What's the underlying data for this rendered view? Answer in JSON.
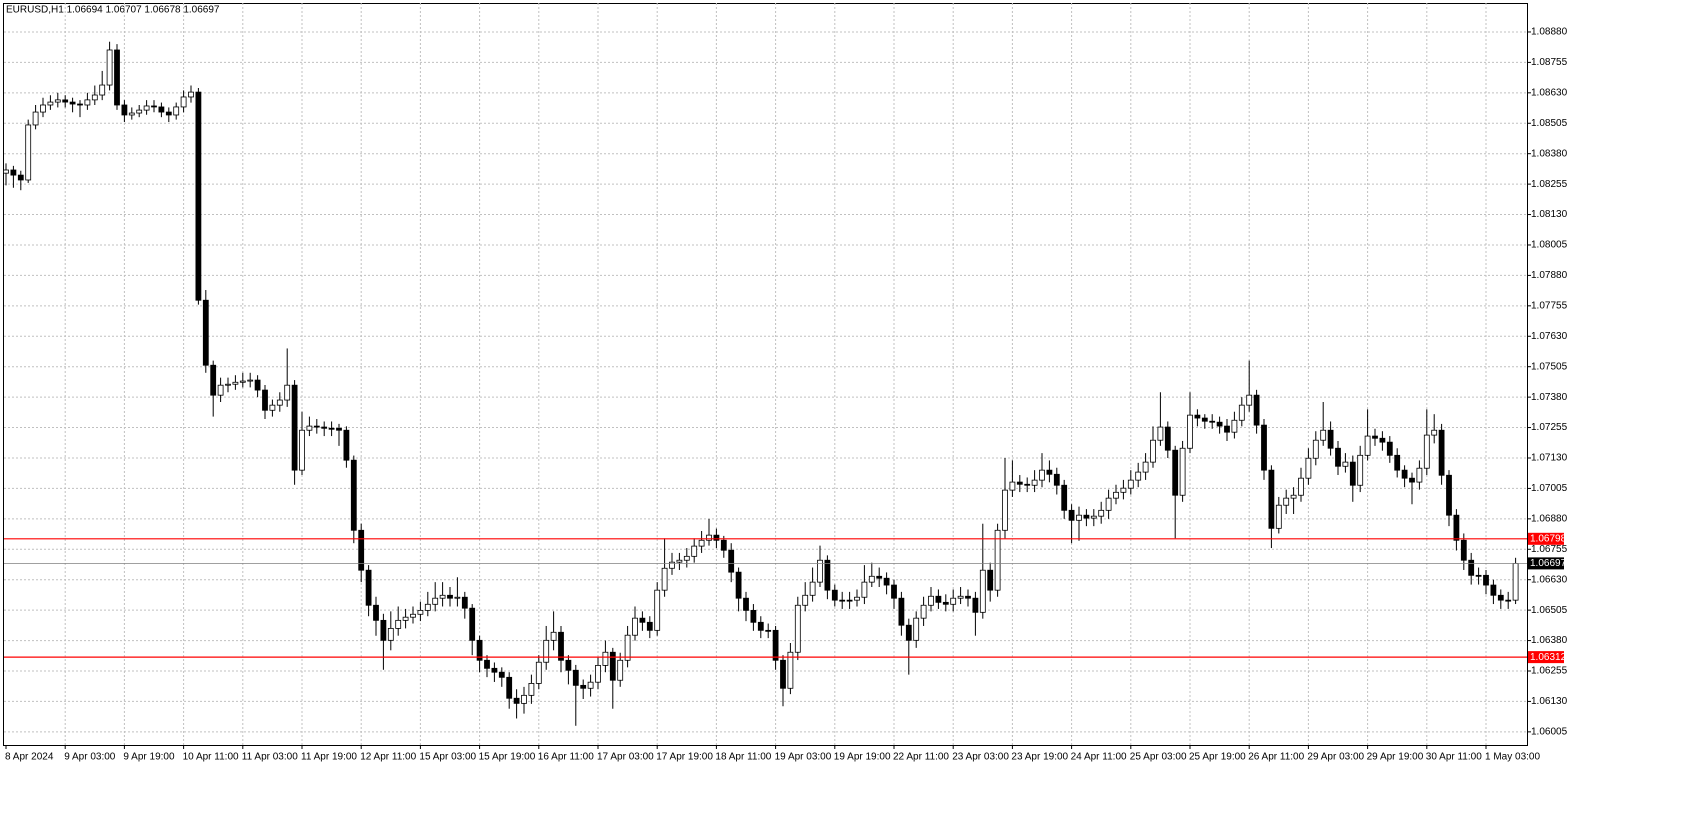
{
  "chart_data": {
    "type": "candlestick",
    "title": "EURUSD,H1  1.06694 1.06707 1.06678 1.06697",
    "categories": [
      "8 Apr 2024",
      null,
      null,
      null,
      null,
      null,
      null,
      null,
      "9 Apr 03:00",
      null,
      null,
      null,
      null,
      null,
      null,
      null,
      "9 Apr 19:00",
      null,
      null,
      null,
      null,
      null,
      null,
      null,
      "10 Apr 11:00",
      null,
      null,
      null,
      null,
      null,
      null,
      null,
      "11 Apr 03:00",
      null,
      null,
      null,
      null,
      null,
      null,
      null,
      "11 Apr 19:00",
      null,
      null,
      null,
      null,
      null,
      null,
      null,
      "12 Apr 11:00",
      null,
      null,
      null,
      null,
      null,
      null,
      null,
      "15 Apr 03:00",
      null,
      null,
      null,
      null,
      null,
      null,
      null,
      "15 Apr 19:00",
      null,
      null,
      null,
      null,
      null,
      null,
      null,
      "16 Apr 11:00",
      null,
      null,
      null,
      null,
      null,
      null,
      null,
      "17 Apr 03:00",
      null,
      null,
      null,
      null,
      null,
      null,
      null,
      "17 Apr 19:00",
      null,
      null,
      null,
      null,
      null,
      null,
      null,
      "18 Apr 11:00",
      null,
      null,
      null,
      null,
      null,
      null,
      null,
      "19 Apr 03:00",
      null,
      null,
      null,
      null,
      null,
      null,
      null,
      "19 Apr 19:00",
      null,
      null,
      null,
      null,
      null,
      null,
      null,
      "22 Apr 11:00",
      null,
      null,
      null,
      null,
      null,
      null,
      null,
      "23 Apr 03:00",
      null,
      null,
      null,
      null,
      null,
      null,
      null,
      "23 Apr 19:00",
      null,
      null,
      null,
      null,
      null,
      null,
      null,
      "24 Apr 11:00",
      null,
      null,
      null,
      null,
      null,
      null,
      null,
      "25 Apr 03:00",
      null,
      null,
      null,
      null,
      null,
      null,
      null,
      "25 Apr 19:00",
      null,
      null,
      null,
      null,
      null,
      null,
      null,
      "26 Apr 11:00",
      null,
      null,
      null,
      null,
      null,
      null,
      null,
      "29 Apr 03:00",
      null,
      null,
      null,
      null,
      null,
      null,
      null,
      "29 Apr 19:00",
      null,
      null,
      null,
      null,
      null,
      null,
      null,
      "30 Apr 11:00",
      null,
      null,
      null,
      null,
      null,
      null,
      null,
      "1 May 03:00",
      null,
      null,
      null,
      null
    ],
    "open": [
      1.083,
      1.08313,
      1.08292,
      1.08272,
      1.08498,
      1.08551,
      1.0858,
      1.08592,
      1.08601,
      1.08592,
      1.08584,
      1.0858,
      1.08601,
      1.08621,
      1.08662,
      1.08806,
      1.0858,
      1.08539,
      1.08547,
      1.08559,
      1.08576,
      1.08572,
      1.08551,
      1.08539,
      1.08572,
      1.08613,
      1.08633,
      1.07778,
      1.07511,
      1.07388,
      1.07429,
      1.07433,
      1.07441,
      1.07446,
      1.0745,
      1.07409,
      1.07326,
      1.07347,
      1.07368,
      1.07429,
      1.0708,
      1.07244,
      1.07261,
      1.07257,
      1.07252,
      1.07252,
      1.07244,
      1.07121,
      1.06833,
      1.06669,
      1.06525,
      1.06463,
      1.06381,
      1.0643,
      1.06463,
      1.06476,
      1.06488,
      1.06504,
      1.06529,
      1.06554,
      1.06566,
      1.06554,
      1.06558,
      1.06513,
      1.06381,
      1.06299,
      1.06266,
      1.0625,
      1.06229,
      1.06143,
      1.06122,
      1.06155,
      1.06204,
      1.06291,
      1.06381,
      1.06414,
      1.06299,
      1.06258,
      1.06196,
      1.06184,
      1.06209,
      1.06278,
      1.06332,
      1.06217,
      1.06299,
      1.06402,
      1.06472,
      1.06455,
      1.06422,
      1.06587,
      1.06677,
      1.06702,
      1.0671,
      1.06726,
      1.06768,
      1.06792,
      1.06813,
      1.06792,
      1.06751,
      1.06661,
      1.06554,
      1.06504,
      1.06455,
      1.06422,
      1.06422,
      1.06299,
      1.06184,
      1.06332,
      1.06525,
      1.06566,
      1.0662,
      1.0671,
      1.06587,
      1.06546,
      1.06546,
      1.06546,
      1.06558,
      1.0662,
      1.06644,
      1.06636,
      1.06608,
      1.06554,
      1.06443,
      1.06381,
      1.06472,
      1.06525,
      1.06562,
      1.06537,
      1.06529,
      1.06554,
      1.06562,
      1.06554,
      1.06496,
      1.06669,
      1.06587,
      1.06833,
      1.06998,
      1.07031,
      1.07022,
      1.07018,
      1.07039,
      1.0708,
      1.07063,
      1.07018,
      1.06915,
      1.06874,
      1.06895,
      1.06883,
      1.06891,
      1.06915,
      1.06965,
      1.06989,
      1.07006,
      1.07039,
      1.07072,
      1.07113,
      1.07203,
      1.07257,
      1.07162,
      1.06977,
      1.0717,
      1.07306,
      1.07294,
      1.07281,
      1.07277,
      1.07261,
      1.07236,
      1.07285,
      1.07347,
      1.07388,
      1.07265,
      1.0708,
      1.06841,
      1.06936,
      1.06965,
      1.06977,
      1.07047,
      1.07129,
      1.07203,
      1.07244,
      1.0717,
      1.07096,
      1.07113,
      1.07018,
      1.07141,
      1.0722,
      1.07211,
      1.07195,
      1.07141,
      1.0708,
      1.07047,
      1.07031,
      1.07088,
      1.07224,
      1.07244,
      1.07059,
      1.06895,
      1.06792,
      1.0671,
      1.06648,
      1.06648,
      1.06608,
      1.06566,
      1.06546,
      1.06546
    ],
    "high": [
      1.0834,
      1.0833,
      1.0831,
      1.0852,
      1.0858,
      1.0861,
      1.0862,
      1.0863,
      1.0862,
      1.0861,
      1.086,
      1.0863,
      1.0866,
      1.0872,
      1.0884,
      1.0883,
      1.086,
      1.0857,
      1.0858,
      1.086,
      1.086,
      1.0859,
      1.0857,
      1.0859,
      1.0864,
      1.0866,
      1.0865,
      1.0782,
      1.0753,
      1.0746,
      1.0746,
      1.0747,
      1.0748,
      1.0748,
      1.0747,
      1.0743,
      1.0737,
      1.074,
      1.0758,
      1.0745,
      1.0732,
      1.073,
      1.0729,
      1.0728,
      1.0728,
      1.0727,
      1.0726,
      1.0714,
      1.0686,
      1.0669,
      1.0656,
      1.0649,
      1.065,
      1.0652,
      1.0651,
      1.0652,
      1.0654,
      1.0658,
      1.0662,
      1.0662,
      1.066,
      1.0664,
      1.0658,
      1.0653,
      1.064,
      1.0632,
      1.0629,
      1.0627,
      1.0625,
      1.0618,
      1.0619,
      1.0624,
      1.0632,
      1.0644,
      1.065,
      1.0644,
      1.0632,
      1.0628,
      1.0622,
      1.0624,
      1.0631,
      1.0638,
      1.0635,
      1.0633,
      1.0644,
      1.0652,
      1.065,
      1.0648,
      1.0662,
      1.068,
      1.0674,
      1.0674,
      1.0676,
      1.068,
      1.0683,
      1.0688,
      1.0684,
      1.0681,
      1.0678,
      1.0668,
      1.0658,
      1.0653,
      1.0648,
      1.0645,
      1.0644,
      1.0632,
      1.0637,
      1.0656,
      1.0662,
      1.0668,
      1.0677,
      1.0673,
      1.0661,
      1.0658,
      1.0658,
      1.0659,
      1.0669,
      1.067,
      1.0668,
      1.0666,
      1.0663,
      1.0658,
      1.0647,
      1.065,
      1.0656,
      1.066,
      1.0659,
      1.0657,
      1.0659,
      1.066,
      1.0659,
      1.0658,
      1.0686,
      1.067,
      1.0686,
      1.0713,
      1.0712,
      1.0706,
      1.0705,
      1.0708,
      1.0715,
      1.0712,
      1.0709,
      1.0704,
      1.0694,
      1.0693,
      1.0692,
      1.0692,
      1.0695,
      1.07,
      1.0702,
      1.0704,
      1.0708,
      1.0711,
      1.0715,
      1.0726,
      1.074,
      1.0728,
      1.0718,
      1.072,
      1.074,
      1.0733,
      1.0731,
      1.0731,
      1.073,
      1.0729,
      1.0732,
      1.0738,
      1.0753,
      1.0741,
      1.0729,
      1.071,
      1.0697,
      1.07,
      1.0701,
      1.0709,
      1.0717,
      1.0724,
      1.0736,
      1.0728,
      1.072,
      1.0715,
      1.0714,
      1.0718,
      1.0733,
      1.0725,
      1.0724,
      1.0722,
      1.0717,
      1.071,
      1.0707,
      1.0712,
      1.0733,
      1.0731,
      1.0727,
      1.0708,
      1.0692,
      1.0682,
      1.0674,
      1.0668,
      1.0667,
      1.0663,
      1.0659,
      1.0658,
      1.0672
    ],
    "low": [
      1.0825,
      1.0824,
      1.0823,
      1.0826,
      1.0848,
      1.0853,
      1.0856,
      1.0857,
      1.0857,
      1.0855,
      1.0853,
      1.0856,
      1.0858,
      1.086,
      1.0864,
      1.0856,
      1.0851,
      1.0852,
      1.0853,
      1.0854,
      1.0855,
      1.0853,
      1.0851,
      1.0852,
      1.0855,
      1.0859,
      1.0776,
      1.0748,
      1.073,
      1.0736,
      1.074,
      1.0741,
      1.0742,
      1.0742,
      1.0738,
      1.0729,
      1.073,
      1.0732,
      1.0734,
      1.0702,
      1.0706,
      1.0722,
      1.0723,
      1.0722,
      1.0722,
      1.0718,
      1.0709,
      1.0678,
      1.0662,
      1.0648,
      1.064,
      1.0626,
      1.0634,
      1.064,
      1.0643,
      1.0645,
      1.0646,
      1.0648,
      1.065,
      1.0652,
      1.0652,
      1.0652,
      1.0647,
      1.0632,
      1.0625,
      1.0623,
      1.0621,
      1.0619,
      1.061,
      1.0606,
      1.0608,
      1.0612,
      1.0618,
      1.0626,
      1.0634,
      1.0625,
      1.062,
      1.0603,
      1.0614,
      1.0615,
      1.0618,
      1.0625,
      1.061,
      1.0619,
      1.0627,
      1.0638,
      1.0642,
      1.0639,
      1.064,
      1.0656,
      1.0665,
      1.0667,
      1.0668,
      1.067,
      1.0674,
      1.0677,
      1.0676,
      1.0672,
      1.0662,
      1.065,
      1.0646,
      1.0642,
      1.0639,
      1.0639,
      1.0626,
      1.0611,
      1.0616,
      1.063,
      1.065,
      1.0654,
      1.066,
      1.0655,
      1.0652,
      1.0651,
      1.0651,
      1.0652,
      1.0653,
      1.066,
      1.066,
      1.0657,
      1.0651,
      1.064,
      1.0624,
      1.0635,
      1.0644,
      1.065,
      1.0651,
      1.065,
      1.065,
      1.0653,
      1.0652,
      1.064,
      1.0647,
      1.0654,
      1.0656,
      1.068,
      1.0697,
      1.0699,
      1.0699,
      1.0699,
      1.0701,
      1.0703,
      1.0698,
      1.0688,
      1.0678,
      1.0679,
      1.0685,
      1.0685,
      1.0686,
      1.0688,
      1.0694,
      1.0696,
      1.0698,
      1.0701,
      1.0704,
      1.0709,
      1.0718,
      1.0713,
      1.068,
      1.0695,
      1.0715,
      1.0726,
      1.0725,
      1.0725,
      1.0723,
      1.072,
      1.0721,
      1.0726,
      1.0732,
      1.0723,
      1.0704,
      1.0676,
      1.0682,
      1.069,
      1.069,
      1.0695,
      1.0702,
      1.071,
      1.0718,
      1.0714,
      1.0706,
      1.0707,
      1.0695,
      1.0699,
      1.0712,
      1.0718,
      1.0716,
      1.0711,
      1.0705,
      1.0701,
      1.0694,
      1.07,
      1.0706,
      1.0719,
      1.0702,
      1.0685,
      1.0675,
      1.0667,
      1.0661,
      1.0661,
      1.0657,
      1.0653,
      1.0651,
      1.0651,
      1.0653
    ],
    "close": [
      1.08313,
      1.08292,
      1.08272,
      1.08498,
      1.08551,
      1.0858,
      1.08592,
      1.08601,
      1.08592,
      1.08584,
      1.0858,
      1.08601,
      1.08621,
      1.08662,
      1.08806,
      1.0858,
      1.08539,
      1.08547,
      1.08559,
      1.08576,
      1.08572,
      1.08551,
      1.08539,
      1.08572,
      1.08613,
      1.08633,
      1.07778,
      1.07511,
      1.07388,
      1.07429,
      1.07433,
      1.07441,
      1.07446,
      1.0745,
      1.07409,
      1.07326,
      1.07347,
      1.07368,
      1.07429,
      1.0708,
      1.07244,
      1.07261,
      1.07257,
      1.07252,
      1.07252,
      1.07244,
      1.07121,
      1.06833,
      1.06669,
      1.06525,
      1.06463,
      1.06381,
      1.0643,
      1.06463,
      1.06476,
      1.06488,
      1.06504,
      1.06529,
      1.06554,
      1.06566,
      1.06554,
      1.06558,
      1.06513,
      1.06381,
      1.06299,
      1.06266,
      1.0625,
      1.06229,
      1.06143,
      1.06122,
      1.06155,
      1.06204,
      1.06291,
      1.06381,
      1.06414,
      1.06299,
      1.06258,
      1.06196,
      1.06184,
      1.06209,
      1.06278,
      1.06332,
      1.06217,
      1.06299,
      1.06402,
      1.06472,
      1.06455,
      1.06422,
      1.06587,
      1.06677,
      1.06702,
      1.0671,
      1.06726,
      1.06768,
      1.06792,
      1.06813,
      1.06792,
      1.06751,
      1.06661,
      1.06554,
      1.06504,
      1.06455,
      1.06422,
      1.06422,
      1.06299,
      1.06184,
      1.06332,
      1.06525,
      1.06566,
      1.0662,
      1.0671,
      1.06587,
      1.06546,
      1.06546,
      1.06546,
      1.06558,
      1.0662,
      1.06644,
      1.06636,
      1.06608,
      1.06554,
      1.06443,
      1.06381,
      1.06472,
      1.06525,
      1.06562,
      1.06537,
      1.06529,
      1.06554,
      1.06562,
      1.06554,
      1.06496,
      1.06669,
      1.06587,
      1.06833,
      1.06998,
      1.07031,
      1.07022,
      1.07018,
      1.07039,
      1.0708,
      1.07063,
      1.07018,
      1.06915,
      1.06874,
      1.06895,
      1.06883,
      1.06891,
      1.06915,
      1.06965,
      1.06989,
      1.07006,
      1.07039,
      1.07072,
      1.07113,
      1.07203,
      1.07257,
      1.07162,
      1.06977,
      1.0717,
      1.07306,
      1.07294,
      1.07281,
      1.07277,
      1.07261,
      1.07236,
      1.07285,
      1.07347,
      1.07388,
      1.07265,
      1.0708,
      1.06841,
      1.06936,
      1.06965,
      1.06977,
      1.07047,
      1.07129,
      1.07203,
      1.07244,
      1.0717,
      1.07096,
      1.07113,
      1.07018,
      1.07141,
      1.0722,
      1.07211,
      1.07195,
      1.07141,
      1.0708,
      1.07047,
      1.07031,
      1.07088,
      1.07224,
      1.07244,
      1.07059,
      1.06895,
      1.06792,
      1.0671,
      1.06648,
      1.06648,
      1.06608,
      1.06566,
      1.06546,
      1.06546,
      1.06697
    ],
    "ylim": [
      1.05951,
      1.08999
    ],
    "yticks": [
      {
        "value": 1.0888,
        "label": "1.08880"
      },
      {
        "value": 1.08755,
        "label": "1.08755"
      },
      {
        "value": 1.0863,
        "label": "1.08630"
      },
      {
        "value": 1.08505,
        "label": "1.08505"
      },
      {
        "value": 1.0838,
        "label": "1.08380"
      },
      {
        "value": 1.08255,
        "label": "1.08255"
      },
      {
        "value": 1.0813,
        "label": "1.08130"
      },
      {
        "value": 1.08005,
        "label": "1.08005"
      },
      {
        "value": 1.0788,
        "label": "1.07880"
      },
      {
        "value": 1.07755,
        "label": "1.07755"
      },
      {
        "value": 1.0763,
        "label": "1.07630"
      },
      {
        "value": 1.07505,
        "label": "1.07505"
      },
      {
        "value": 1.0738,
        "label": "1.07380"
      },
      {
        "value": 1.07255,
        "label": "1.07255"
      },
      {
        "value": 1.0713,
        "label": "1.07130"
      },
      {
        "value": 1.07005,
        "label": "1.07005"
      },
      {
        "value": 1.0688,
        "label": "1.06880"
      },
      {
        "value": 1.06755,
        "label": "1.06755"
      },
      {
        "value": 1.0663,
        "label": "1.06630"
      },
      {
        "value": 1.06505,
        "label": "1.06505"
      },
      {
        "value": 1.0638,
        "label": "1.06380"
      },
      {
        "value": 1.06255,
        "label": "1.06255"
      },
      {
        "value": 1.0613,
        "label": "1.06130"
      },
      {
        "value": 1.06005,
        "label": "1.06005"
      }
    ],
    "grid": true,
    "up_color": "#ffffff",
    "down_color": "#000000",
    "levels": [
      1.06798,
      1.06312
    ],
    "level_color": "#ff0000",
    "last_price": 1.06697
  }
}
